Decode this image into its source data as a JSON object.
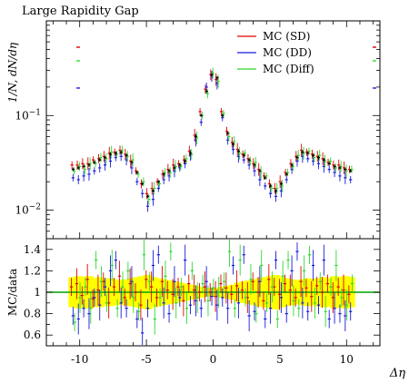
{
  "chart_data": {
    "title": "Large Rapidity Gap",
    "xlabel": "Δη",
    "ylabel_main": "1/N, dN/dη",
    "ylabel_ratio": "MC/data",
    "type": "scatter",
    "xlim": [
      -12.5,
      12.5
    ],
    "ylim_main": [
      0.005,
      1.0
    ],
    "ylim_ratio": [
      0.5,
      1.5
    ],
    "yscale_main": "log",
    "x_ticks": [
      {
        "value": -10,
        "label": "-10"
      },
      {
        "value": -5,
        "label": "-5"
      },
      {
        "value": 0,
        "label": "0"
      },
      {
        "value": 5,
        "label": "5"
      },
      {
        "value": 10,
        "label": "10"
      }
    ],
    "y_ticks_main": [
      {
        "value": 0.01,
        "base": "10",
        "exp": "−2"
      },
      {
        "value": 0.1,
        "base": "10",
        "exp": "−1"
      }
    ],
    "y_ticks_ratio": [
      {
        "value": 0.6,
        "label": "0.6"
      },
      {
        "value": 0.8,
        "label": "0.8"
      },
      {
        "value": 1.0,
        "label": "1"
      },
      {
        "value": 1.2,
        "label": "1.2"
      },
      {
        "value": 1.4,
        "label": "1.4"
      }
    ],
    "legend": {
      "placement": "top-right"
    },
    "series": [
      {
        "name": "MC (SD)",
        "color": "#e00000"
      },
      {
        "name": "MC (DD)",
        "color": "#1a1adc"
      },
      {
        "name": "MC (Diff)",
        "color": "#2ed82e"
      }
    ],
    "data_color": "#000000",
    "band_color": "#ffff00",
    "ratio_line_color": "#00a000",
    "x_centers": [
      -10.5,
      -10.1,
      -9.7,
      -9.3,
      -8.9,
      -8.5,
      -8.1,
      -7.7,
      -7.3,
      -6.9,
      -6.5,
      -6.1,
      -5.7,
      -5.3,
      -4.9,
      -4.5,
      -4.1,
      -3.7,
      -3.3,
      -2.9,
      -2.5,
      -2.1,
      -1.7,
      -1.3,
      -0.9,
      -0.5,
      -0.1,
      0.3,
      0.7,
      1.1,
      1.5,
      1.9,
      2.3,
      2.7,
      3.1,
      3.5,
      3.9,
      4.3,
      4.7,
      5.1,
      5.5,
      5.9,
      6.3,
      6.7,
      7.1,
      7.5,
      7.9,
      8.3,
      8.7,
      9.1,
      9.5,
      9.9,
      10.3
    ],
    "data_main": [
      0.027,
      0.028,
      0.029,
      0.03,
      0.032,
      0.034,
      0.036,
      0.039,
      0.04,
      0.041,
      0.038,
      0.032,
      0.025,
      0.019,
      0.014,
      0.016,
      0.02,
      0.024,
      0.026,
      0.028,
      0.03,
      0.033,
      0.04,
      0.06,
      0.1,
      0.18,
      0.27,
      0.25,
      0.1,
      0.065,
      0.05,
      0.042,
      0.038,
      0.034,
      0.03,
      0.026,
      0.022,
      0.018,
      0.016,
      0.019,
      0.024,
      0.03,
      0.036,
      0.041,
      0.04,
      0.038,
      0.036,
      0.034,
      0.031,
      0.029,
      0.028,
      0.027,
      0.026
    ],
    "mc_main": {
      "MC (SD)": [
        0.03,
        0.03,
        0.031,
        0.031,
        0.034,
        0.035,
        0.037,
        0.04,
        0.041,
        0.043,
        0.039,
        0.033,
        0.026,
        0.019,
        0.015,
        0.017,
        0.02,
        0.024,
        0.027,
        0.03,
        0.031,
        0.034,
        0.042,
        0.062,
        0.11,
        0.19,
        0.27,
        0.24,
        0.11,
        0.068,
        0.052,
        0.044,
        0.039,
        0.035,
        0.031,
        0.027,
        0.023,
        0.019,
        0.017,
        0.02,
        0.025,
        0.031,
        0.037,
        0.043,
        0.041,
        0.039,
        0.037,
        0.035,
        0.032,
        0.03,
        0.03,
        0.028,
        0.027
      ],
      "MC (DD)": [
        0.022,
        0.021,
        0.023,
        0.024,
        0.026,
        0.028,
        0.03,
        0.033,
        0.036,
        0.037,
        0.034,
        0.028,
        0.02,
        0.015,
        0.011,
        0.013,
        0.017,
        0.021,
        0.023,
        0.026,
        0.028,
        0.031,
        0.038,
        0.055,
        0.085,
        0.2,
        0.26,
        0.22,
        0.095,
        0.055,
        0.044,
        0.037,
        0.034,
        0.03,
        0.026,
        0.021,
        0.018,
        0.015,
        0.014,
        0.016,
        0.021,
        0.027,
        0.033,
        0.037,
        0.035,
        0.033,
        0.031,
        0.029,
        0.027,
        0.025,
        0.023,
        0.022,
        0.021
      ],
      "MC (Diff)": [
        0.026,
        0.029,
        0.027,
        0.031,
        0.031,
        0.036,
        0.035,
        0.041,
        0.039,
        0.043,
        0.037,
        0.034,
        0.024,
        0.02,
        0.013,
        0.017,
        0.019,
        0.025,
        0.025,
        0.029,
        0.029,
        0.035,
        0.039,
        0.058,
        0.1,
        0.17,
        0.28,
        0.23,
        0.105,
        0.06,
        0.053,
        0.04,
        0.04,
        0.033,
        0.032,
        0.025,
        0.023,
        0.017,
        0.017,
        0.018,
        0.025,
        0.029,
        0.038,
        0.04,
        0.042,
        0.036,
        0.038,
        0.033,
        0.033,
        0.028,
        0.029,
        0.026,
        0.027
      ]
    },
    "ratio": {
      "MC (SD)": [
        1.05,
        1.08,
        0.97,
        1.12,
        0.94,
        1.02,
        1.1,
        0.9,
        1.05,
        1.15,
        0.95,
        1.08,
        1.0,
        0.88,
        1.12,
        1.05,
        0.95,
        1.1,
        1.02,
        0.98,
        1.05,
        0.92,
        1.08,
        1.02,
        1.0,
        1.05,
        1.0,
        0.96,
        1.08,
        1.04,
        0.98,
        1.06,
        1.02,
        0.95,
        1.1,
        1.0,
        0.92,
        1.12,
        1.05,
        0.98,
        1.08,
        1.02,
        0.95,
        1.1,
        1.04,
        0.96,
        1.06,
        1.0,
        1.08,
        0.95,
        1.05,
        1.02,
        0.98
      ],
      "MC (DD)": [
        0.78,
        0.75,
        0.85,
        0.8,
        0.95,
        0.88,
        1.05,
        1.2,
        1.3,
        0.9,
        0.85,
        1.1,
        0.75,
        0.62,
        0.85,
        1.25,
        1.35,
        0.9,
        0.8,
        1.1,
        0.95,
        1.3,
        0.88,
        0.92,
        0.85,
        1.1,
        0.96,
        0.88,
        0.95,
        0.85,
        1.25,
        0.9,
        1.35,
        0.78,
        0.82,
        1.1,
        0.75,
        0.85,
        1.3,
        0.95,
        0.8,
        1.2,
        1.38,
        0.9,
        0.82,
        1.25,
        0.88,
        1.3,
        0.75,
        0.85,
        0.8,
        0.78,
        0.82
      ],
      "MC (Diff)": [
        0.72,
        0.95,
        1.05,
        0.85,
        1.3,
        1.1,
        0.9,
        1.25,
        0.85,
        1.05,
        1.2,
        0.95,
        0.82,
        1.35,
        1.1,
        0.75,
        0.95,
        1.15,
        1.38,
        0.9,
        1.05,
        0.85,
        1.2,
        0.95,
        1.08,
        0.92,
        1.04,
        1.0,
        1.1,
        1.38,
        0.85,
        1.3,
        0.95,
        1.12,
        0.8,
        1.25,
        0.9,
        1.05,
        0.75,
        1.15,
        1.3,
        0.92,
        0.85,
        1.2,
        1.35,
        0.9,
        1.1,
        0.82,
        1.05,
        1.25,
        0.95,
        0.88,
        1.08
      ]
    },
    "band_halfwidth": [
      0.14,
      0.15,
      0.14,
      0.15,
      0.13,
      0.14,
      0.12,
      0.13,
      0.12,
      0.11,
      0.12,
      0.13,
      0.14,
      0.15,
      0.16,
      0.14,
      0.13,
      0.12,
      0.11,
      0.1,
      0.09,
      0.08,
      0.07,
      0.06,
      0.05,
      0.04,
      0.04,
      0.04,
      0.05,
      0.06,
      0.07,
      0.09,
      0.1,
      0.11,
      0.12,
      0.13,
      0.14,
      0.15,
      0.16,
      0.14,
      0.13,
      0.12,
      0.11,
      0.12,
      0.13,
      0.12,
      0.13,
      0.14,
      0.13,
      0.15,
      0.14,
      0.15,
      0.14
    ]
  }
}
